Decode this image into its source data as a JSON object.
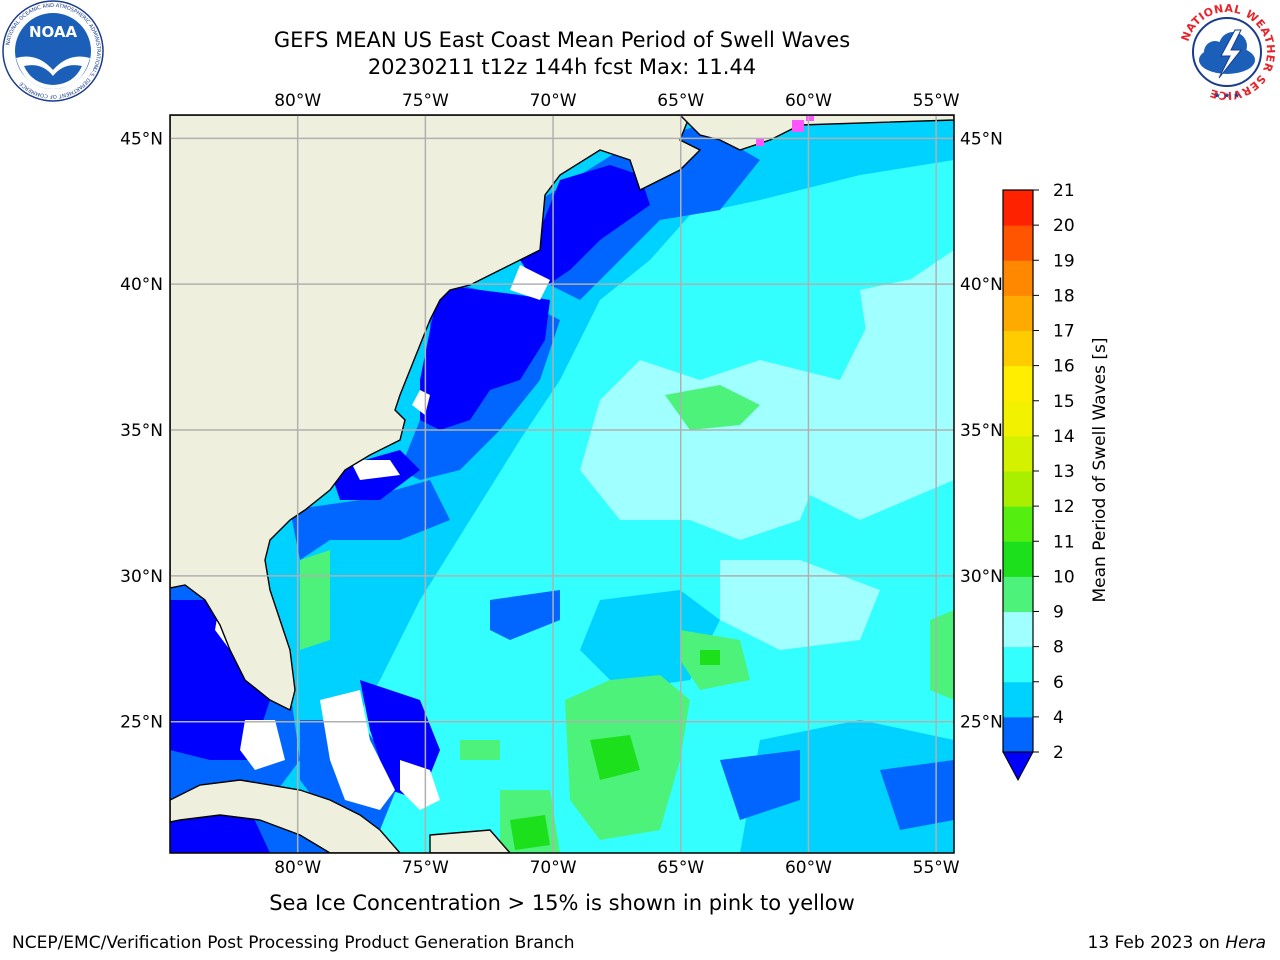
{
  "header": {
    "title": "GEFS MEAN US East Coast Mean Period of Swell Waves",
    "subtitle": "20230211 t12z 144h fcst   Max: 11.44"
  },
  "logos": {
    "noaa": {
      "text": "NOAA",
      "ring_text": "NATIONAL OCEANIC AND ATMOSPHERIC ADMINISTRATION",
      "bottom_text": "U.S. DEPARTMENT OF COMMERCE"
    },
    "nws": {
      "ring_text": "NATIONAL WEATHER SERVICE"
    }
  },
  "map": {
    "lon_labels": [
      "80°W",
      "75°W",
      "70°W",
      "65°W",
      "60°W",
      "55°W"
    ],
    "lat_labels": [
      "45°N",
      "40°N",
      "35°N",
      "30°N",
      "25°N"
    ],
    "lon_values": [
      -80,
      -75,
      -70,
      -65,
      -60,
      -55
    ],
    "lat_values": [
      45,
      40,
      35,
      30,
      25
    ],
    "lon_range": [
      -85,
      -54.3
    ],
    "lat_range": [
      20.5,
      45.8
    ],
    "land_color": "#efefdd",
    "grid_color": "#b0b0b0"
  },
  "colorbar": {
    "label": "Mean Period of Swell Waves [s]",
    "tick_labels": [
      "2",
      "4",
      "6",
      "8",
      "9",
      "10",
      "11",
      "12",
      "13",
      "14",
      "15",
      "16",
      "17",
      "18",
      "19",
      "20",
      "21"
    ],
    "colors": [
      "#0066ff",
      "#00d2ff",
      "#33ffff",
      "#a0ffff",
      "#4cf27a",
      "#1be01b",
      "#55ee11",
      "#aaee00",
      "#d4f200",
      "#f2f200",
      "#ffee00",
      "#ffcc00",
      "#ffaa00",
      "#ff8800",
      "#ff5500",
      "#ff2200"
    ],
    "under_color": "#0000ff"
  },
  "caption": "Sea Ice Concentration > 15% is shown in pink to yellow",
  "footer": {
    "left": "NCEP/EMC/Verification Post Processing Product Generation Branch",
    "right_date": "13 Feb 2023 on ",
    "right_host": "Hera"
  }
}
